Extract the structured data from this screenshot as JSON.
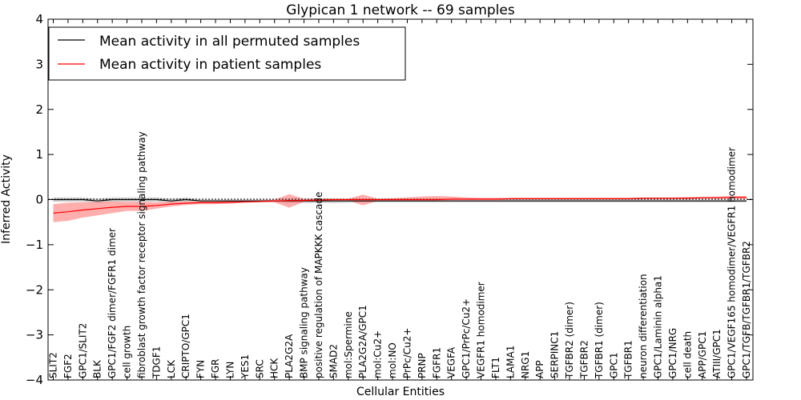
{
  "chart_data": {
    "type": "line",
    "title": "Glypican 1 network -- 69 samples",
    "xlabel": "Cellular Entities",
    "ylabel": "Inferred Activity",
    "ylim": [
      -4,
      4
    ],
    "yticks": [
      "−4",
      "−3",
      "−2",
      "−1",
      "0",
      "1",
      "2",
      "3",
      "4"
    ],
    "grid": false,
    "legend_position": "top-left",
    "categories": [
      "SLIT2",
      "FGF2",
      "GPC1/SLIT2",
      "BLK",
      "GPC1/FGF2 dimer/FGFR1 dimer",
      "cell growth",
      "fibroblast growth factor receptor signaling pathway",
      "TDGF1",
      "LCK",
      "CRIPTO/GPC1",
      "FYN",
      "FGR",
      "LYN",
      "YES1",
      "SRC",
      "HCK",
      "PLA2G2A",
      "BMP signaling pathway",
      "positive regulation of MAPKKK cascade",
      "SMAD2",
      "mol:Spermine",
      "PLA2G2A/GPC1",
      "mol:Cu2+",
      "mol:NO",
      "PrPc/Cu2+",
      "PRNP",
      "FGFR1",
      "VEGFA",
      "GPC1/PrPc/Cu2+",
      "VEGFR1 homodimer",
      "FLT1",
      "LAMA1",
      "NRG1",
      "APP",
      "SERPINC1",
      "TGFBR2 (dimer)",
      "TGFBR2",
      "TGFBR1 (dimer)",
      "GPC1",
      "TGFBR1",
      "neuron differentiation",
      "GPC1/Laminin alpha1",
      "GPC1/NRG",
      "cell death",
      "APP/GPC1",
      "ATIII/GPC1",
      "GPC1/VEGF165 homodimer/VEGFR1 homodimer",
      "GPC1/TGFB/TGFBR1/TGFBR2"
    ],
    "series": [
      {
        "name": "Mean activity in all permuted samples",
        "color": "#000000",
        "band_color": "#bbbbbb",
        "values": [
          0.0,
          0.0,
          0.0,
          -0.03,
          0.0,
          0.0,
          0.0,
          0.0,
          -0.03,
          0.0,
          -0.03,
          -0.03,
          -0.03,
          -0.03,
          -0.03,
          -0.03,
          -0.03,
          -0.03,
          -0.03,
          -0.03,
          -0.03,
          -0.03,
          -0.03,
          -0.03,
          -0.03,
          -0.03,
          -0.03,
          -0.03,
          -0.03,
          -0.03,
          -0.03,
          -0.03,
          -0.03,
          -0.03,
          -0.03,
          -0.03,
          -0.03,
          -0.03,
          -0.03,
          -0.03,
          -0.03,
          -0.03,
          -0.03,
          -0.03,
          -0.03,
          -0.03,
          -0.03,
          -0.03
        ],
        "lower": [
          -0.05,
          -0.05,
          -0.05,
          -0.08,
          -0.05,
          -0.05,
          -0.05,
          -0.05,
          -0.08,
          -0.05,
          -0.06,
          -0.06,
          -0.06,
          -0.06,
          -0.06,
          -0.06,
          -0.08,
          -0.08,
          -0.08,
          -0.08,
          -0.07,
          -0.06,
          -0.06,
          -0.06,
          -0.06,
          -0.06,
          -0.06,
          -0.06,
          -0.06,
          -0.06,
          -0.06,
          -0.06,
          -0.06,
          -0.06,
          -0.06,
          -0.06,
          -0.06,
          -0.06,
          -0.06,
          -0.06,
          -0.06,
          -0.06,
          -0.06,
          -0.06,
          -0.06,
          -0.06,
          -0.06,
          -0.06
        ],
        "upper": [
          0.05,
          0.05,
          0.05,
          0.02,
          0.05,
          0.05,
          0.05,
          0.05,
          0.02,
          0.05,
          0.0,
          0.0,
          0.0,
          0.0,
          0.0,
          0.0,
          0.02,
          0.02,
          0.02,
          0.02,
          0.01,
          0.0,
          0.0,
          0.0,
          0.0,
          0.0,
          0.0,
          0.0,
          0.0,
          0.0,
          0.0,
          0.0,
          0.0,
          0.0,
          0.0,
          0.0,
          0.0,
          0.0,
          0.0,
          0.0,
          0.0,
          0.0,
          0.0,
          0.0,
          0.0,
          0.0,
          0.0,
          0.0
        ]
      },
      {
        "name": "Mean activity in patient samples",
        "color": "#ff0000",
        "band_color": "#ff6b6b",
        "values": [
          -0.3,
          -0.27,
          -0.23,
          -0.2,
          -0.17,
          -0.15,
          -0.15,
          -0.13,
          -0.1,
          -0.08,
          -0.07,
          -0.07,
          -0.06,
          -0.05,
          -0.04,
          -0.03,
          -0.02,
          -0.02,
          -0.01,
          0.0,
          0.0,
          0.0,
          0.0,
          0.0,
          0.0,
          0.0,
          0.0,
          0.01,
          0.01,
          0.01,
          0.01,
          0.02,
          0.02,
          0.02,
          0.02,
          0.02,
          0.02,
          0.02,
          0.02,
          0.02,
          0.03,
          0.03,
          0.03,
          0.03,
          0.04,
          0.04,
          0.05,
          0.05
        ],
        "lower": [
          -0.5,
          -0.47,
          -0.4,
          -0.35,
          -0.3,
          -0.25,
          -0.25,
          -0.2,
          -0.15,
          -0.12,
          -0.1,
          -0.1,
          -0.09,
          -0.07,
          -0.06,
          -0.06,
          -0.18,
          -0.05,
          -0.04,
          -0.03,
          -0.02,
          -0.13,
          -0.03,
          -0.02,
          -0.02,
          -0.02,
          -0.02,
          -0.01,
          -0.01,
          -0.01,
          -0.01,
          0.0,
          0.0,
          0.0,
          0.0,
          0.0,
          0.0,
          0.0,
          0.0,
          0.0,
          0.01,
          0.01,
          0.01,
          0.01,
          0.02,
          0.02,
          0.02,
          0.02
        ],
        "upper": [
          -0.1,
          -0.07,
          -0.06,
          -0.05,
          -0.04,
          -0.05,
          -0.05,
          -0.06,
          -0.05,
          -0.04,
          -0.04,
          -0.04,
          -0.03,
          -0.03,
          -0.02,
          0.0,
          0.12,
          0.02,
          0.02,
          0.02,
          0.02,
          0.11,
          0.02,
          0.03,
          0.05,
          0.07,
          0.08,
          0.07,
          0.05,
          0.04,
          0.04,
          0.04,
          0.04,
          0.04,
          0.04,
          0.04,
          0.04,
          0.04,
          0.04,
          0.04,
          0.05,
          0.05,
          0.05,
          0.06,
          0.06,
          0.07,
          0.08,
          0.08
        ]
      }
    ]
  }
}
